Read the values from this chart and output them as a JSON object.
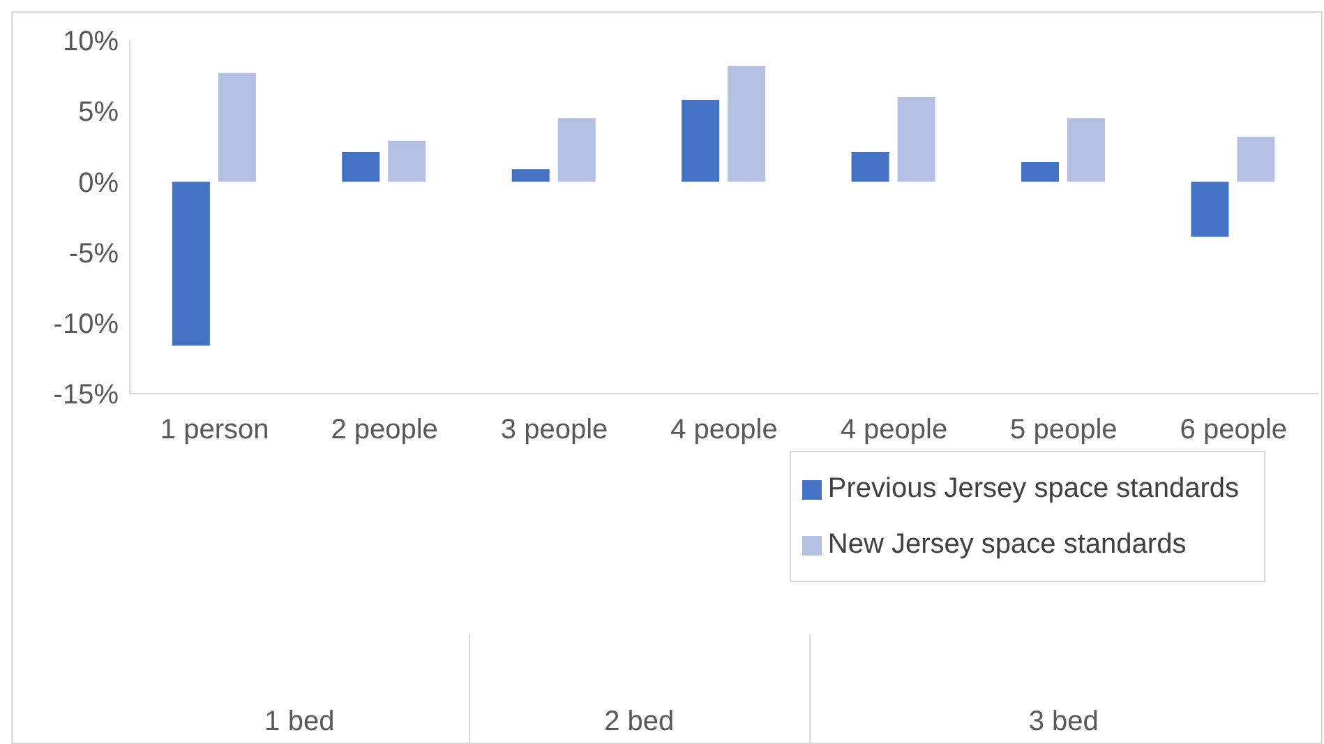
{
  "chart_data": {
    "type": "bar",
    "categories": [
      "1 person",
      "2 people",
      "3 people",
      "4 people",
      "4 people",
      "5 people",
      "6 people"
    ],
    "series": [
      {
        "name": "Previous Jersey space standards",
        "color": "#4472c4",
        "values": [
          -11.6,
          2.1,
          0.9,
          5.8,
          2.1,
          1.4,
          -3.9
        ]
      },
      {
        "name": "New Jersey space standards",
        "color": "#b4bfe4",
        "values": [
          7.7,
          2.9,
          4.5,
          8.2,
          6.0,
          4.5,
          3.2
        ]
      }
    ],
    "ylim": [
      -15,
      10
    ],
    "yticks": [
      {
        "value": -15,
        "label": "-15%"
      },
      {
        "value": -10,
        "label": "-10%"
      },
      {
        "value": -5,
        "label": "-5%"
      },
      {
        "value": 0,
        "label": "0%"
      },
      {
        "value": 5,
        "label": "5%"
      },
      {
        "value": 10,
        "label": "10%"
      }
    ],
    "annotations": [
      "1 bed",
      "2 bed",
      "3 bed"
    ],
    "grid": false,
    "legend": "bottom right"
  }
}
